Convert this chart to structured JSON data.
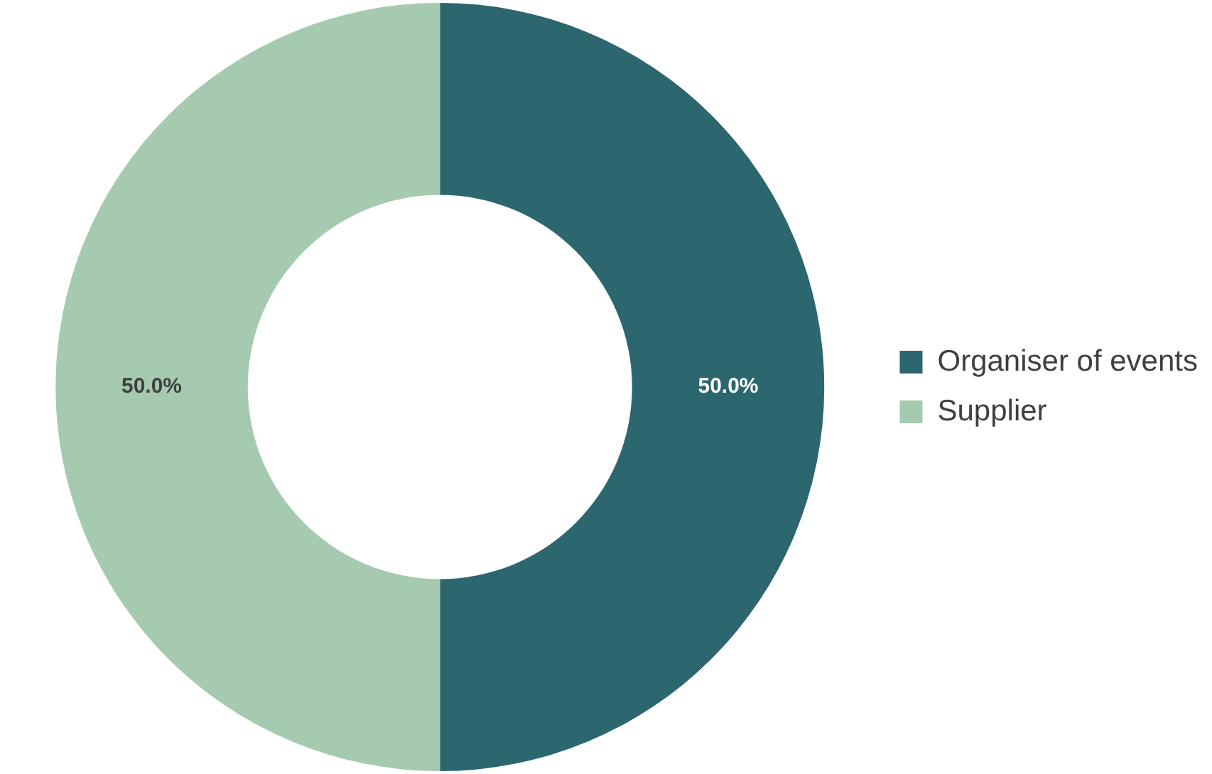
{
  "chart_data": {
    "type": "donut",
    "categories": [
      "Organiser of events",
      "Supplier"
    ],
    "values": [
      50,
      50
    ],
    "colors": [
      "#2c666e",
      "#a5cab0"
    ],
    "value_labels": [
      "50.0%",
      "50.0%"
    ],
    "legend": "right"
  }
}
